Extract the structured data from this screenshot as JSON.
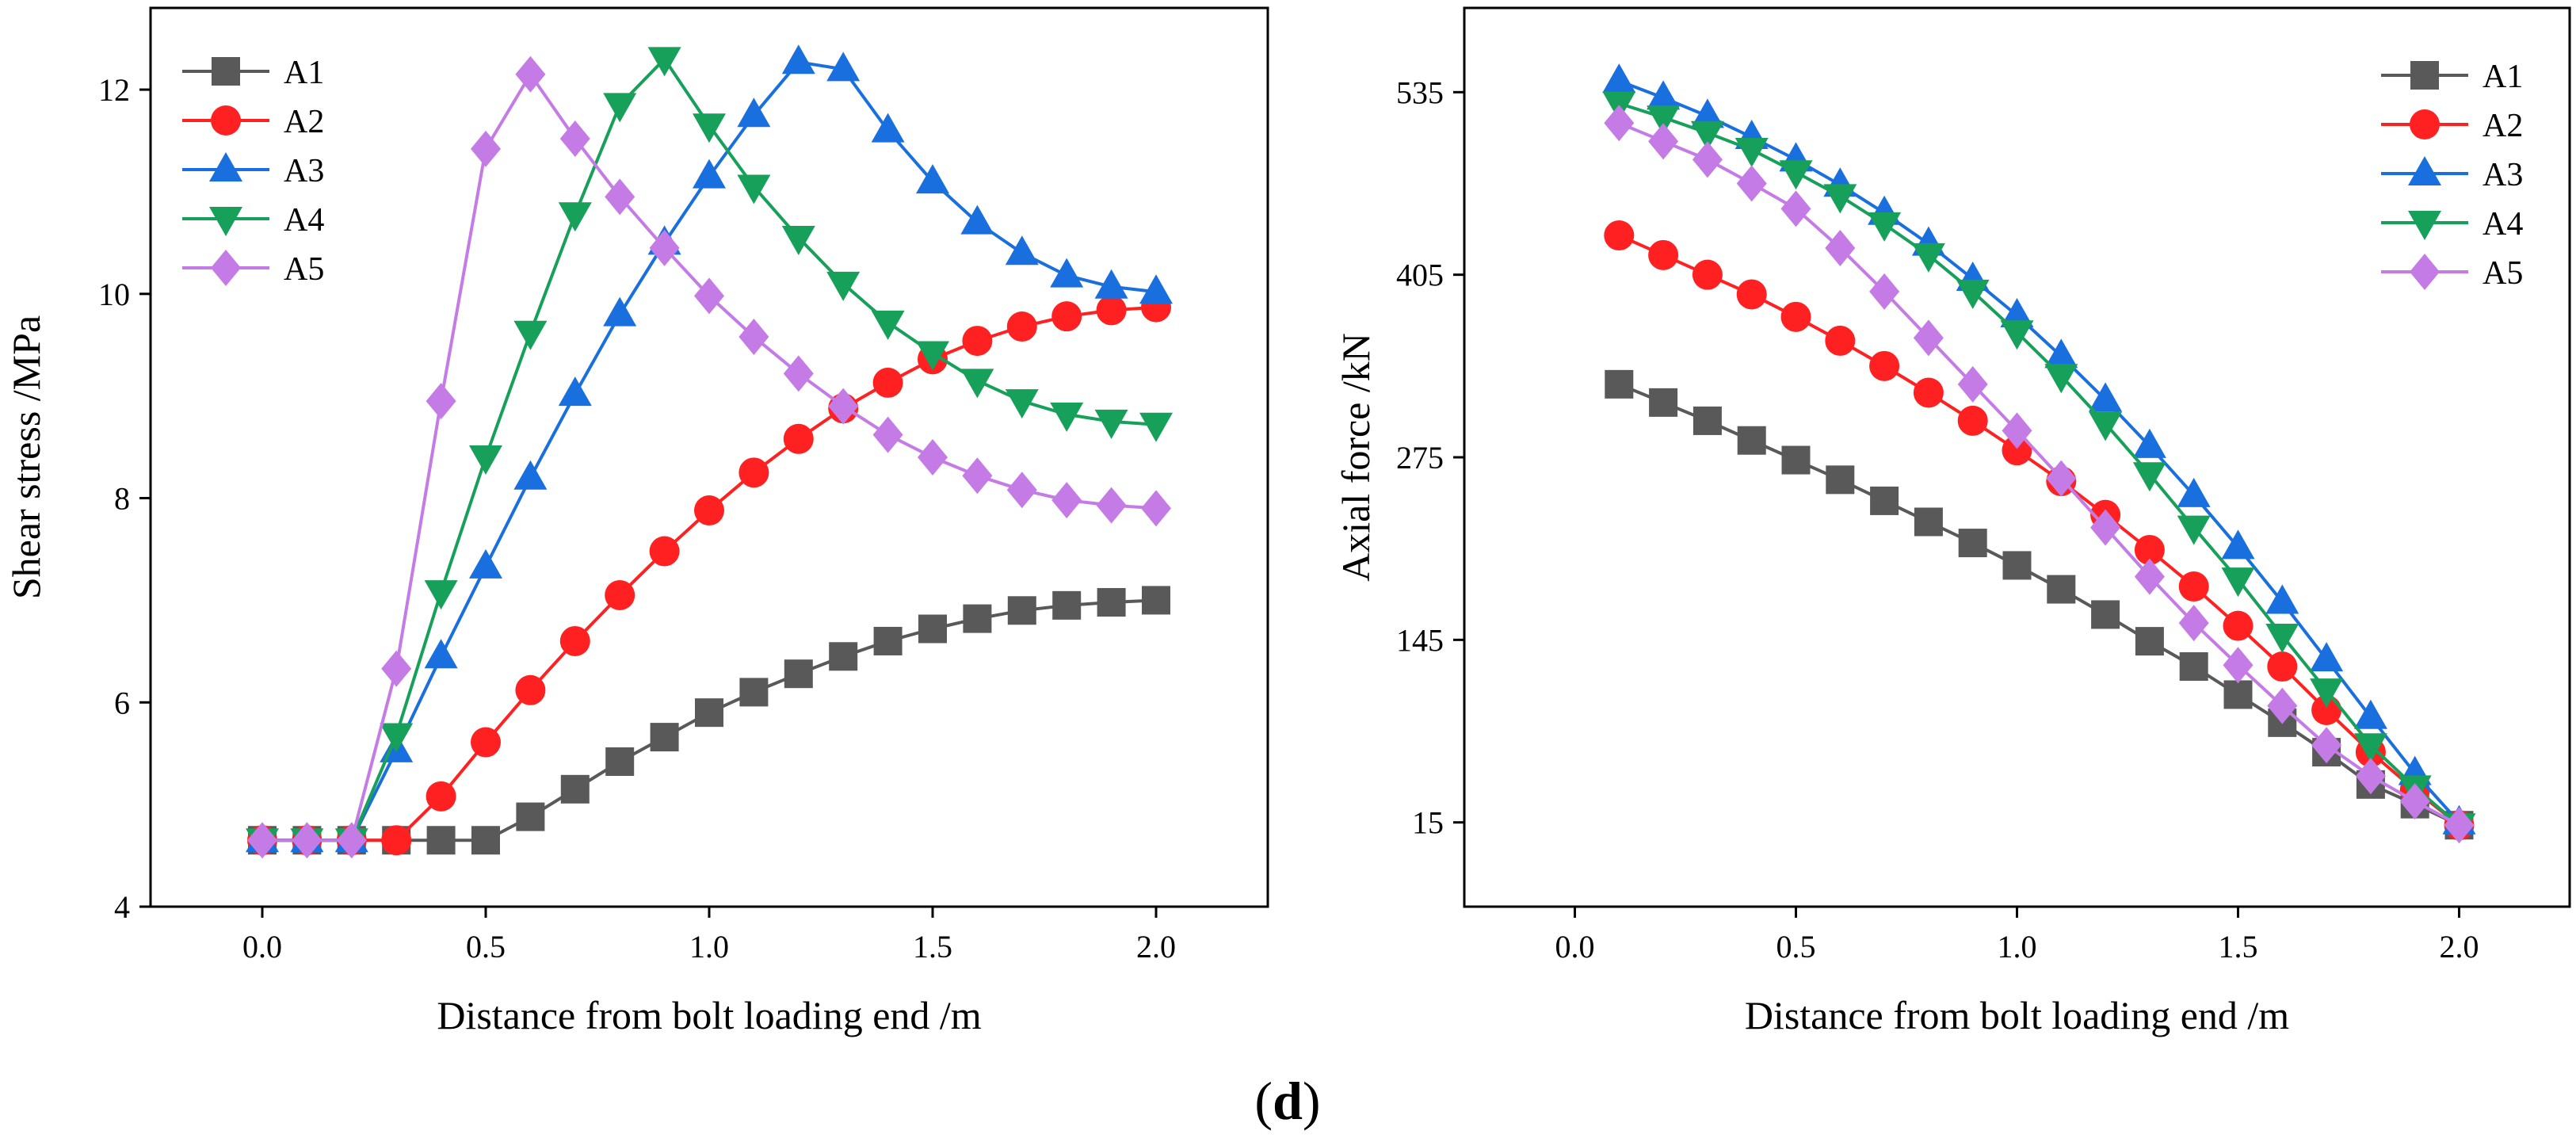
{
  "figure": {
    "caption_open": "(",
    "caption_letter": "d",
    "caption_close": ")"
  },
  "series_styles": [
    {
      "name": "A1",
      "color": "#595959",
      "marker": "square"
    },
    {
      "name": "A2",
      "color": "#ff2121",
      "marker": "circle"
    },
    {
      "name": "A3",
      "color": "#1a6fdf",
      "marker": "triangle-up"
    },
    {
      "name": "A4",
      "color": "#17a05a",
      "marker": "triangle-down"
    },
    {
      "name": "A5",
      "color": "#c57be6",
      "marker": "diamond"
    }
  ],
  "chart_data": [
    {
      "type": "line",
      "title": "",
      "xlabel": "Distance from bolt loading end /m",
      "ylabel": "Shear stress /MPa",
      "xlim": [
        -0.25,
        2.25
      ],
      "ylim": [
        4,
        12.8
      ],
      "xticks": [
        0.0,
        0.5,
        1.0,
        1.5,
        2.0
      ],
      "xtick_labels": [
        "0.0",
        "0.5",
        "1.0",
        "1.5",
        "2.0"
      ],
      "yticks": [
        4,
        6,
        8,
        10,
        12
      ],
      "ytick_labels": [
        "4",
        "6",
        "8",
        "10",
        "12"
      ],
      "legend_position": "top-left",
      "grid": false,
      "x": [
        0.0,
        0.1,
        0.2,
        0.3,
        0.4,
        0.5,
        0.6,
        0.7,
        0.8,
        0.9,
        1.0,
        1.1,
        1.2,
        1.3,
        1.4,
        1.5,
        1.6,
        1.7,
        1.8,
        1.9,
        2.0
      ],
      "series": [
        {
          "name": "A1",
          "values": [
            4.65,
            4.65,
            4.65,
            4.65,
            4.65,
            4.65,
            4.88,
            5.15,
            5.42,
            5.66,
            5.9,
            6.1,
            6.28,
            6.45,
            6.6,
            6.72,
            6.82,
            6.9,
            6.95,
            6.98,
            7.0
          ]
        },
        {
          "name": "A2",
          "values": [
            4.65,
            4.65,
            4.65,
            4.65,
            5.08,
            5.61,
            6.12,
            6.6,
            7.05,
            7.48,
            7.88,
            8.25,
            8.58,
            8.88,
            9.13,
            9.36,
            9.54,
            9.68,
            9.78,
            9.84,
            9.87
          ]
        },
        {
          "name": "A3",
          "values": [
            4.65,
            4.65,
            4.65,
            5.53,
            6.45,
            7.33,
            8.2,
            9.02,
            9.8,
            10.5,
            11.15,
            11.75,
            12.27,
            12.2,
            11.6,
            11.1,
            10.7,
            10.4,
            10.18,
            10.07,
            10.02
          ]
        },
        {
          "name": "A4",
          "values": [
            4.65,
            4.65,
            4.65,
            5.68,
            7.08,
            8.4,
            9.62,
            10.78,
            11.85,
            12.3,
            11.65,
            11.05,
            10.55,
            10.1,
            9.72,
            9.42,
            9.15,
            8.95,
            8.82,
            8.75,
            8.72
          ]
        },
        {
          "name": "A5",
          "values": [
            4.65,
            4.65,
            4.65,
            6.33,
            8.95,
            11.42,
            12.15,
            11.52,
            10.95,
            10.45,
            9.98,
            9.58,
            9.22,
            8.9,
            8.62,
            8.4,
            8.22,
            8.08,
            7.98,
            7.93,
            7.9
          ]
        }
      ]
    },
    {
      "type": "line",
      "title": "",
      "xlabel": "Distance from bolt loading end /m",
      "ylabel": "Axial force /kN",
      "xlim": [
        -0.25,
        2.25
      ],
      "ylim": [
        -45,
        595
      ],
      "xticks": [
        0.0,
        0.5,
        1.0,
        1.5,
        2.0
      ],
      "xtick_labels": [
        "0.0",
        "0.5",
        "1.0",
        "1.5",
        "2.0"
      ],
      "yticks": [
        15,
        145,
        275,
        405,
        535
      ],
      "ytick_labels": [
        "15",
        "145",
        "275",
        "405",
        "535"
      ],
      "legend_position": "top-right",
      "grid": false,
      "x": [
        0.1,
        0.2,
        0.3,
        0.4,
        0.5,
        0.6,
        0.7,
        0.8,
        0.9,
        1.0,
        1.1,
        1.2,
        1.3,
        1.4,
        1.5,
        1.6,
        1.7,
        1.8,
        1.9,
        2.0
      ],
      "series": [
        {
          "name": "A1",
          "values": [
            327,
            314,
            301,
            287,
            273,
            259,
            244,
            229,
            214,
            198,
            181,
            163,
            144,
            126,
            106,
            86,
            65,
            42,
            28,
            13
          ]
        },
        {
          "name": "A2",
          "values": [
            433,
            419,
            405,
            391,
            375,
            358,
            340,
            321,
            301,
            280,
            258,
            234,
            209,
            183,
            155,
            126,
            95,
            65,
            38,
            13
          ]
        },
        {
          "name": "A3",
          "values": [
            543,
            531,
            518,
            503,
            487,
            469,
            449,
            427,
            402,
            376,
            347,
            316,
            283,
            248,
            211,
            172,
            131,
            90,
            50,
            15
          ]
        },
        {
          "name": "A4",
          "values": [
            527,
            517,
            506,
            494,
            478,
            461,
            441,
            419,
            393,
            364,
            333,
            299,
            263,
            225,
            188,
            148,
            109,
            70,
            40,
            13
          ]
        },
        {
          "name": "A5",
          "values": [
            513,
            500,
            487,
            470,
            452,
            424,
            393,
            360,
            327,
            294,
            260,
            225,
            190,
            157,
            127,
            98,
            70,
            48,
            30,
            13
          ]
        }
      ]
    }
  ]
}
